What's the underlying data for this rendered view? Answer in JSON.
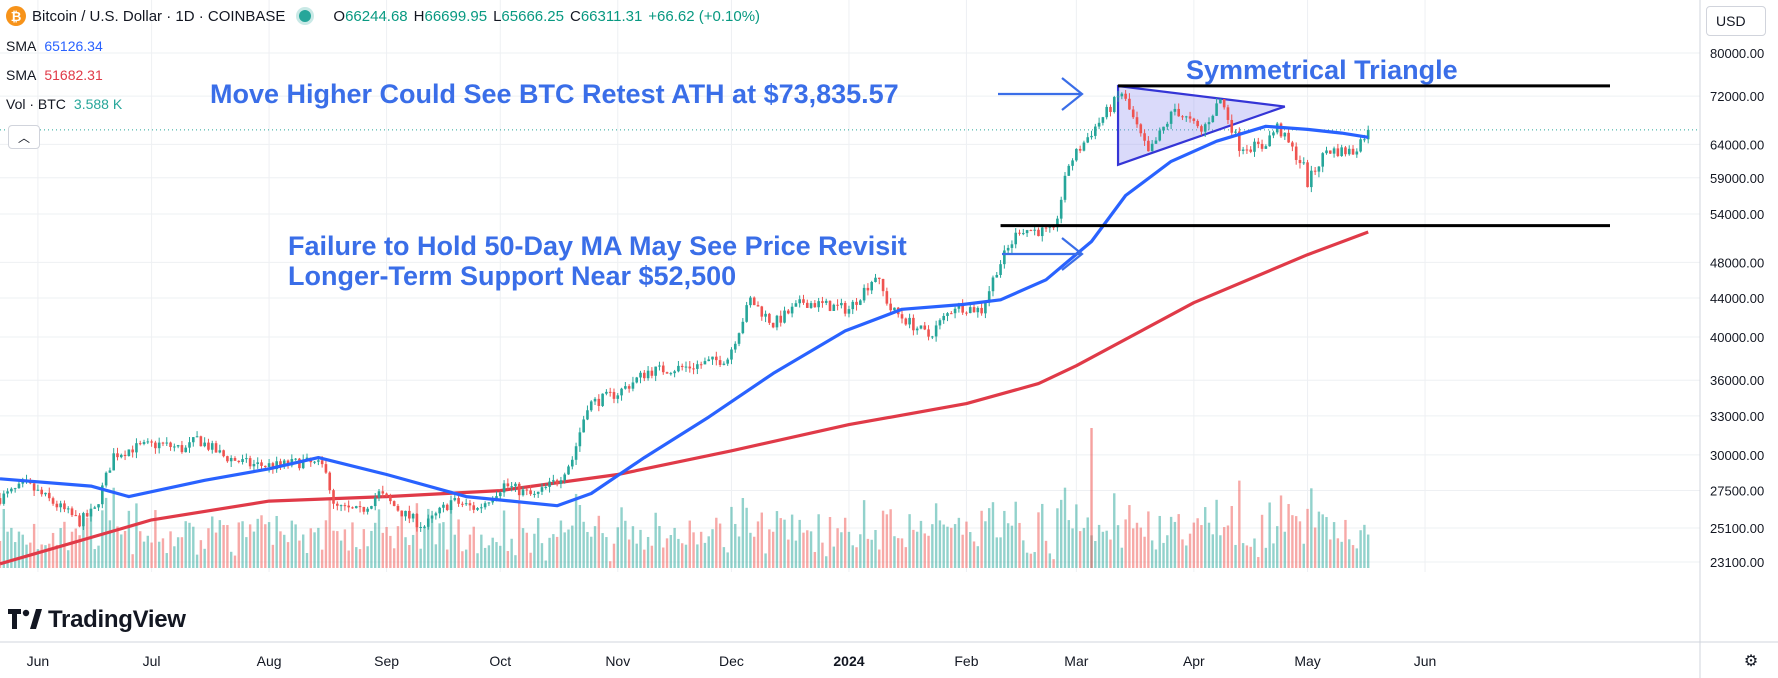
{
  "header": {
    "symbol_title": "Bitcoin / U.S. Dollar · 1D · COINBASE",
    "ohlc": [
      {
        "key": "O",
        "value": "66244.68"
      },
      {
        "key": "H",
        "value": "66699.95"
      },
      {
        "key": "L",
        "value": "65666.25"
      },
      {
        "key": "C",
        "value": "66311.31"
      }
    ],
    "change": "+66.62 (+0.10%)"
  },
  "indicators": [
    {
      "name": "SMA",
      "value": "65126.34",
      "color": "#2962ff"
    },
    {
      "name": "SMA",
      "value": "51682.31",
      "color": "#e03a48"
    },
    {
      "name": "Vol · BTC",
      "value": "3.588 K",
      "color": "#26a69a"
    }
  ],
  "currency": "USD",
  "logo_text": "TradingView",
  "annotations": {
    "triangle_title": "Symmetrical Triangle",
    "upper_note": "Move Higher Could See BTC Retest ATH at $73,835.57",
    "lower_note_line1": "Failure to Hold 50-Day MA May See Price Revisit",
    "lower_note_line2": "Longer-Term Support Near $52,500"
  },
  "colors": {
    "up": "#26a69a",
    "down": "#ef5350",
    "sma50": "#2962ff",
    "sma200": "#e03a48",
    "annotation": "#3a6ee8",
    "triangle_fill": "#8c8cf0"
  },
  "chart_data": {
    "type": "candlestick",
    "title": "Bitcoin / U.S. Dollar · 1D · COINBASE",
    "y_scale": "log",
    "y_ticks": [
      80000,
      72000,
      64000,
      59000,
      54000,
      48000,
      44000,
      40000,
      36000,
      33000,
      30000,
      27500,
      25100,
      23100
    ],
    "y_tick_labels": [
      "80000.00",
      "72000.00",
      "64000.00",
      "59000.00",
      "54000.00",
      "48000.00",
      "44000.00",
      "40000.00",
      "36000.00",
      "33000.00",
      "30000.00",
      "27500.00",
      "25100.00",
      "23100.00"
    ],
    "x_ticks": [
      {
        "date": "2023-06-01",
        "label": "Jun"
      },
      {
        "date": "2023-07-01",
        "label": "Jul"
      },
      {
        "date": "2023-08-01",
        "label": "Aug"
      },
      {
        "date": "2023-09-01",
        "label": "Sep"
      },
      {
        "date": "2023-10-01",
        "label": "Oct"
      },
      {
        "date": "2023-11-01",
        "label": "Nov"
      },
      {
        "date": "2023-12-01",
        "label": "Dec"
      },
      {
        "date": "2024-01-01",
        "label": "2024"
      },
      {
        "date": "2024-02-01",
        "label": "Feb"
      },
      {
        "date": "2024-03-01",
        "label": "Mar"
      },
      {
        "date": "2024-04-01",
        "label": "Apr"
      },
      {
        "date": "2024-05-01",
        "label": "May"
      },
      {
        "date": "2024-06-01",
        "label": "Jun"
      }
    ],
    "date_range": [
      "2023-05-22",
      "2024-05-17"
    ],
    "price_path": [
      [
        "2023-05-22",
        27000
      ],
      [
        "2023-05-29",
        27900
      ],
      [
        "2023-06-05",
        26700
      ],
      [
        "2023-06-12",
        25500
      ],
      [
        "2023-06-16",
        26200
      ],
      [
        "2023-06-21",
        30000
      ],
      [
        "2023-06-26",
        30500
      ],
      [
        "2023-07-03",
        30800
      ],
      [
        "2023-07-10",
        30400
      ],
      [
        "2023-07-13",
        31200
      ],
      [
        "2023-07-20",
        29900
      ],
      [
        "2023-07-27",
        29300
      ],
      [
        "2023-08-03",
        29200
      ],
      [
        "2023-08-10",
        29500
      ],
      [
        "2023-08-16",
        29100
      ],
      [
        "2023-08-18",
        26400
      ],
      [
        "2023-08-25",
        26100
      ],
      [
        "2023-08-30",
        27300
      ],
      [
        "2023-09-06",
        25900
      ],
      [
        "2023-09-11",
        25200
      ],
      [
        "2023-09-18",
        26800
      ],
      [
        "2023-09-25",
        26300
      ],
      [
        "2023-10-02",
        27900
      ],
      [
        "2023-10-10",
        27100
      ],
      [
        "2023-10-16",
        28200
      ],
      [
        "2023-10-20",
        29700
      ],
      [
        "2023-10-24",
        33900
      ],
      [
        "2023-11-01",
        34900
      ],
      [
        "2023-11-09",
        36800
      ],
      [
        "2023-11-20",
        37200
      ],
      [
        "2023-11-30",
        38000
      ],
      [
        "2023-12-06",
        43800
      ],
      [
        "2023-12-12",
        41300
      ],
      [
        "2023-12-20",
        43600
      ],
      [
        "2024-01-01",
        42800
      ],
      [
        "2024-01-08",
        46500
      ],
      [
        "2024-01-12",
        42800
      ],
      [
        "2024-01-22",
        40100
      ],
      [
        "2024-01-29",
        43200
      ],
      [
        "2024-02-05",
        42700
      ],
      [
        "2024-02-09",
        47200
      ],
      [
        "2024-02-15",
        52100
      ],
      [
        "2024-02-24",
        51600
      ],
      [
        "2024-02-28",
        61000
      ],
      [
        "2024-03-05",
        66000
      ],
      [
        "2024-03-13",
        72600
      ],
      [
        "2024-03-20",
        62500
      ],
      [
        "2024-03-27",
        69800
      ],
      [
        "2024-04-03",
        66000
      ],
      [
        "2024-04-08",
        71500
      ],
      [
        "2024-04-13",
        63800
      ],
      [
        "2024-04-19",
        63600
      ],
      [
        "2024-04-23",
        66800
      ],
      [
        "2024-04-30",
        60600
      ],
      [
        "2024-05-01",
        58300
      ],
      [
        "2024-05-06",
        63100
      ],
      [
        "2024-05-13",
        62900
      ],
      [
        "2024-05-17",
        66311
      ]
    ],
    "series": [
      {
        "name": "SMA",
        "period_hint": 50,
        "points": [
          [
            "2023-05-22",
            28300
          ],
          [
            "2023-06-15",
            27800
          ],
          [
            "2023-06-25",
            27100
          ],
          [
            "2023-07-15",
            28200
          ],
          [
            "2023-08-01",
            29000
          ],
          [
            "2023-08-14",
            29800
          ],
          [
            "2023-09-01",
            28600
          ],
          [
            "2023-09-22",
            27100
          ],
          [
            "2023-10-16",
            26500
          ],
          [
            "2023-10-25",
            27300
          ],
          [
            "2023-11-08",
            29800
          ],
          [
            "2023-11-25",
            32900
          ],
          [
            "2023-12-12",
            36600
          ],
          [
            "2023-12-31",
            40600
          ],
          [
            "2024-01-15",
            42800
          ],
          [
            "2024-01-31",
            43300
          ],
          [
            "2024-02-10",
            43800
          ],
          [
            "2024-02-22",
            46000
          ],
          [
            "2024-03-05",
            50500
          ],
          [
            "2024-03-14",
            56500
          ],
          [
            "2024-03-26",
            61400
          ],
          [
            "2024-04-07",
            64500
          ],
          [
            "2024-04-20",
            66900
          ],
          [
            "2024-05-01",
            66400
          ],
          [
            "2024-05-10",
            65800
          ],
          [
            "2024-05-17",
            65126
          ]
        ]
      },
      {
        "name": "SMA",
        "period_hint": 200,
        "points": [
          [
            "2023-05-22",
            23000
          ],
          [
            "2023-07-01",
            25600
          ],
          [
            "2023-08-01",
            26800
          ],
          [
            "2023-09-01",
            27100
          ],
          [
            "2023-10-01",
            27500
          ],
          [
            "2023-11-01",
            28600
          ],
          [
            "2023-12-01",
            30300
          ],
          [
            "2024-01-01",
            32300
          ],
          [
            "2024-02-01",
            34000
          ],
          [
            "2024-02-20",
            35700
          ],
          [
            "2024-03-01",
            37300
          ],
          [
            "2024-04-01",
            43500
          ],
          [
            "2024-05-01",
            48900
          ],
          [
            "2024-05-17",
            51682
          ]
        ]
      }
    ],
    "volume": {
      "peak": {
        "date": "2024-03-05",
        "label": "peak"
      }
    },
    "annotations": {
      "ath_level": 73835.57,
      "support_level": 52500,
      "triangle": {
        "apex_date": "2024-04-25",
        "top_start": [
          "2024-03-12",
          73800
        ],
        "bottom_start": [
          "2024-03-12",
          60900
        ],
        "apex": [
          "2024-04-25",
          70200
        ]
      },
      "last_price": 66311.31
    }
  }
}
